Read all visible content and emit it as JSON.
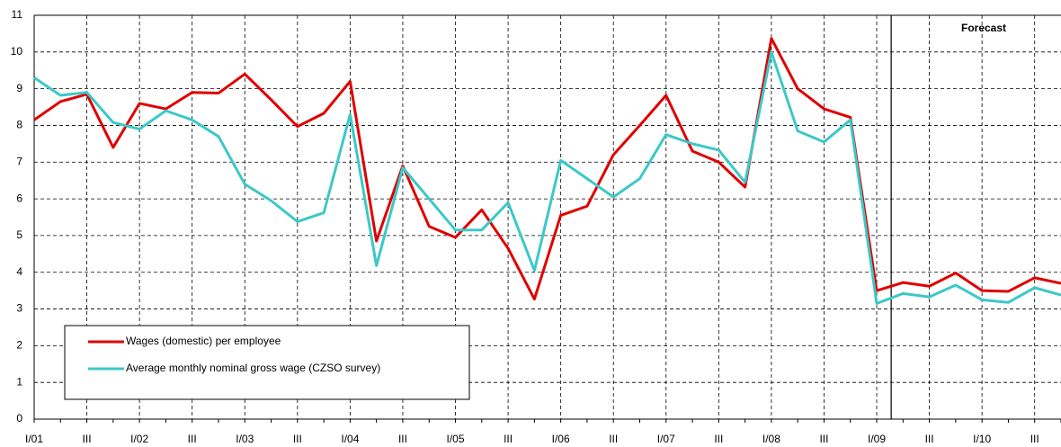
{
  "chart_data": {
    "type": "line",
    "categories": [
      "I/01",
      null,
      "III",
      null,
      "I/02",
      null,
      "III",
      null,
      "I/03",
      null,
      "III",
      null,
      "I/04",
      null,
      "III",
      null,
      "I/05",
      null,
      "III",
      null,
      "I/06",
      null,
      "III",
      null,
      "I/07",
      null,
      "III",
      null,
      "I/08",
      null,
      "III",
      null,
      "I/09",
      null,
      "III",
      null,
      "I/10",
      null,
      "III",
      null
    ],
    "series": [
      {
        "name": "Wages (domestic) per employee",
        "color": "#e00000",
        "values": [
          8.15,
          8.65,
          8.85,
          7.4,
          8.6,
          8.45,
          8.9,
          8.88,
          9.4,
          8.7,
          7.97,
          8.33,
          9.2,
          4.85,
          6.9,
          5.25,
          4.95,
          5.7,
          4.65,
          3.27,
          5.55,
          5.8,
          7.2,
          8.0,
          8.82,
          7.3,
          7.0,
          6.32,
          10.37,
          9.0,
          8.45,
          8.22,
          3.5,
          3.72,
          3.62,
          3.98,
          3.5,
          3.48,
          3.85,
          3.7
        ]
      },
      {
        "name": "Average monthly nominal gross wage (CZSO survey)",
        "color": "#3cc8c8",
        "values": [
          9.3,
          8.82,
          8.9,
          8.08,
          7.9,
          8.4,
          8.15,
          7.7,
          6.4,
          5.95,
          5.38,
          5.62,
          8.3,
          4.18,
          6.85,
          6.0,
          5.15,
          5.15,
          5.9,
          4.05,
          7.05,
          6.55,
          6.05,
          6.55,
          7.75,
          7.5,
          7.33,
          6.45,
          10.0,
          7.85,
          7.55,
          8.15,
          3.15,
          3.42,
          3.33,
          3.65,
          3.25,
          3.18,
          3.58,
          3.38
        ]
      }
    ],
    "ylim": [
      0,
      11
    ],
    "yticks": [
      0,
      1,
      2,
      3,
      4,
      5,
      6,
      7,
      8,
      9,
      10,
      11
    ],
    "grid": true,
    "annotations": [
      "Forecast"
    ],
    "legend": "lower-left"
  }
}
